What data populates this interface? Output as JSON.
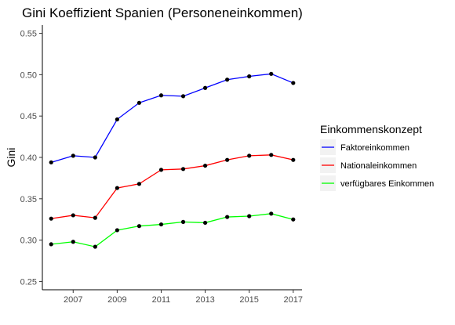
{
  "chart_data": {
    "type": "line",
    "title": "Gini Koeffizient Spanien (Personeneinkommen)",
    "xlabel": "",
    "ylabel": "Gini",
    "x": [
      2006,
      2007,
      2008,
      2009,
      2010,
      2011,
      2012,
      2013,
      2014,
      2015,
      2016,
      2017
    ],
    "xticks": [
      2007,
      2009,
      2011,
      2013,
      2015,
      2017
    ],
    "xlim": [
      2005.6,
      2017.4
    ],
    "yticks": [
      0.25,
      0.3,
      0.35,
      0.4,
      0.45,
      0.5,
      0.55
    ],
    "ytick_labels": [
      "0.25",
      "0.30",
      "0.35",
      "0.40",
      "0.45",
      "0.50",
      "0.55"
    ],
    "ylim": [
      0.24,
      0.56
    ],
    "grid": false,
    "legend": {
      "title": "Einkommenskonzept",
      "position": "right"
    },
    "series": [
      {
        "name": "Faktoreinkommen",
        "color": "#0000ff",
        "values": [
          0.394,
          0.402,
          0.4,
          0.446,
          0.466,
          0.475,
          0.474,
          0.484,
          0.494,
          0.498,
          0.501,
          0.49
        ]
      },
      {
        "name": "Nationaleinkommen",
        "color": "#ff0000",
        "values": [
          0.326,
          0.33,
          0.327,
          0.363,
          0.368,
          0.385,
          0.386,
          0.39,
          0.397,
          0.402,
          0.403,
          0.397
        ]
      },
      {
        "name": "verfügbares Einkommen",
        "color": "#00ff00",
        "values": [
          0.295,
          0.298,
          0.292,
          0.312,
          0.317,
          0.319,
          0.322,
          0.321,
          0.328,
          0.329,
          0.332,
          0.325
        ]
      }
    ],
    "point_color": "#000000"
  }
}
